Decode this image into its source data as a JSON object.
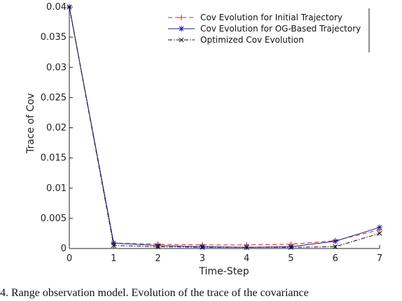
{
  "chart_data": {
    "type": "line",
    "xlabel": "Time-Step",
    "ylabel": "Trace of Cov",
    "xlim": [
      0,
      7
    ],
    "ylim": [
      0,
      0.04
    ],
    "x": [
      0,
      1,
      2,
      3,
      4,
      5,
      6,
      7
    ],
    "xticks": [
      "0",
      "1",
      "2",
      "3",
      "4",
      "5",
      "6",
      "7"
    ],
    "yticks": [
      "0",
      "0.005",
      "0.01",
      "0.015",
      "0.02",
      "0.025",
      "0.03",
      "0.035",
      "0.04"
    ],
    "yticks_values": [
      0,
      0.005,
      0.01,
      0.015,
      0.02,
      0.025,
      0.03,
      0.035,
      0.04
    ],
    "legend_position": "top-right",
    "grid": false,
    "series": [
      {
        "name": "Cov Evolution for Initial Trajectory",
        "values": [
          0.04,
          0.0009,
          0.0007,
          0.0006,
          0.0006,
          0.0007,
          0.0013,
          0.0031
        ],
        "color": "#d62020",
        "dash": "6,4",
        "marker": "plus"
      },
      {
        "name": "Cov Evolution for OG-Based Trajectory",
        "values": [
          0.04,
          0.0009,
          0.0005,
          0.0003,
          0.0002,
          0.0003,
          0.0012,
          0.0035
        ],
        "color": "#1a1aa0",
        "dash": "",
        "marker": "star"
      },
      {
        "name": "Optimized Cov Evolution",
        "values": [
          0.04,
          0.0005,
          0.0003,
          0.0002,
          0.0002,
          0.0002,
          0.0003,
          0.0025
        ],
        "color": "#111111",
        "dash": "6,2,1.5,2",
        "marker": "cross"
      }
    ]
  },
  "caption": "4. Range observation model. Evolution of the trace of the covariance"
}
